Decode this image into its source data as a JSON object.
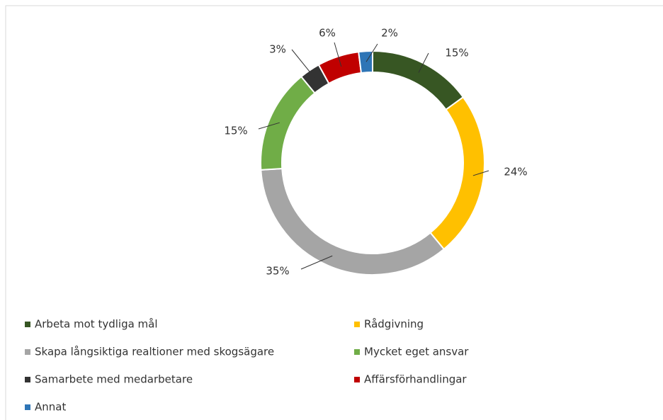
{
  "chart_data": {
    "type": "donut",
    "categories": [
      "Arbeta mot tydliga mål",
      "Rådgivning",
      "Skapa långsiktiga realtioner med skogsägare",
      "Mycket eget ansvar",
      "Samarbete med medarbetare",
      "Affärsförhandlingar",
      "Annat"
    ],
    "values": [
      15,
      24,
      35,
      15,
      3,
      6,
      2
    ],
    "value_labels": [
      "15%",
      "24%",
      "35%",
      "15%",
      "3%",
      "6%",
      "2%"
    ],
    "colors": [
      "#375623",
      "#ffc000",
      "#a5a5a5",
      "#70ad47",
      "#333333",
      "#c00000",
      "#2e75b6"
    ],
    "legend": "bottom"
  }
}
